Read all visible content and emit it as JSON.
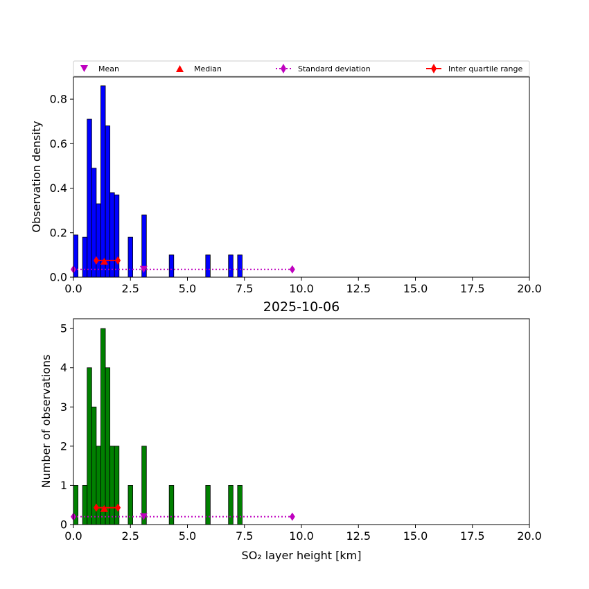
{
  "chart_data": [
    {
      "type": "bar",
      "panel": "top",
      "title": "",
      "xlabel": "",
      "ylabel": "Observation density",
      "xlim": [
        0,
        20
      ],
      "ylim": [
        0,
        0.9
      ],
      "xticks": [
        "0.0",
        "2.5",
        "5.0",
        "7.5",
        "10.0",
        "12.5",
        "15.0",
        "17.5",
        "20.0"
      ],
      "xtick_values": [
        0,
        2.5,
        5,
        7.5,
        10,
        12.5,
        15,
        17.5,
        20
      ],
      "yticks": [
        "0.0",
        "0.2",
        "0.4",
        "0.6",
        "0.8"
      ],
      "ytick_values": [
        0,
        0.2,
        0.4,
        0.6,
        0.8
      ],
      "bar_color": "#0000ff",
      "bin_width": 0.2,
      "bins": [
        {
          "x": 0.0,
          "value": 0.19
        },
        {
          "x": 0.4,
          "value": 0.18
        },
        {
          "x": 0.6,
          "value": 0.71
        },
        {
          "x": 0.8,
          "value": 0.49
        },
        {
          "x": 1.0,
          "value": 0.33
        },
        {
          "x": 1.2,
          "value": 0.86
        },
        {
          "x": 1.4,
          "value": 0.68
        },
        {
          "x": 1.6,
          "value": 0.38
        },
        {
          "x": 1.8,
          "value": 0.37
        },
        {
          "x": 2.4,
          "value": 0.18
        },
        {
          "x": 3.0,
          "value": 0.28
        },
        {
          "x": 4.2,
          "value": 0.1
        },
        {
          "x": 5.8,
          "value": 0.1
        },
        {
          "x": 6.8,
          "value": 0.1
        },
        {
          "x": 7.2,
          "value": 0.1
        }
      ],
      "stats": {
        "mean": {
          "x": 3.08,
          "y": 0.035
        },
        "median": {
          "x": 1.35,
          "y": 0.072
        },
        "std_line": {
          "x": [
            0.0,
            9.6
          ],
          "y": 0.035
        },
        "iqr": {
          "x": [
            1.0,
            1.95
          ],
          "y": 0.075
        }
      }
    },
    {
      "type": "bar",
      "panel": "bottom",
      "title": "2025-10-06",
      "xlabel": "SO₂ layer height [km]",
      "ylabel": "Number of observations",
      "xlim": [
        0,
        20
      ],
      "ylim": [
        0,
        5.25
      ],
      "xticks": [
        "0.0",
        "2.5",
        "5.0",
        "7.5",
        "10.0",
        "12.5",
        "15.0",
        "17.5",
        "20.0"
      ],
      "xtick_values": [
        0,
        2.5,
        5,
        7.5,
        10,
        12.5,
        15,
        17.5,
        20
      ],
      "yticks": [
        "0",
        "1",
        "2",
        "3",
        "4",
        "5"
      ],
      "ytick_values": [
        0,
        1,
        2,
        3,
        4,
        5
      ],
      "bar_color": "#008000",
      "bin_width": 0.2,
      "bins": [
        {
          "x": 0.0,
          "value": 1
        },
        {
          "x": 0.4,
          "value": 1
        },
        {
          "x": 0.6,
          "value": 4
        },
        {
          "x": 0.8,
          "value": 3
        },
        {
          "x": 1.0,
          "value": 2
        },
        {
          "x": 1.2,
          "value": 5
        },
        {
          "x": 1.4,
          "value": 4
        },
        {
          "x": 1.6,
          "value": 2
        },
        {
          "x": 1.8,
          "value": 2
        },
        {
          "x": 2.4,
          "value": 1
        },
        {
          "x": 3.0,
          "value": 2
        },
        {
          "x": 4.2,
          "value": 1
        },
        {
          "x": 5.8,
          "value": 1
        },
        {
          "x": 6.8,
          "value": 1
        },
        {
          "x": 7.2,
          "value": 1
        }
      ],
      "stats": {
        "mean": {
          "x": 3.08,
          "y": 0.2
        },
        "median": {
          "x": 1.35,
          "y": 0.41
        },
        "std_line": {
          "x": [
            0.0,
            9.6
          ],
          "y": 0.2
        },
        "iqr": {
          "x": [
            1.0,
            1.95
          ],
          "y": 0.43
        }
      }
    }
  ],
  "legend": {
    "placement": "top, above upper panel",
    "items": [
      {
        "label": "Mean",
        "marker": "triangle-down",
        "color": "#bf00bf"
      },
      {
        "label": "Median",
        "marker": "triangle-up",
        "color": "#ff0000"
      },
      {
        "label": "Standard deviation",
        "marker": "diamond-dotted",
        "color": "#bf00bf"
      },
      {
        "label": "Inter quartile range",
        "marker": "diamond-line",
        "color": "#ff0000"
      }
    ]
  },
  "colors": {
    "mean": "#bf00bf",
    "std": "#bf00bf",
    "median": "#ff0000",
    "iqr": "#ff0000"
  }
}
